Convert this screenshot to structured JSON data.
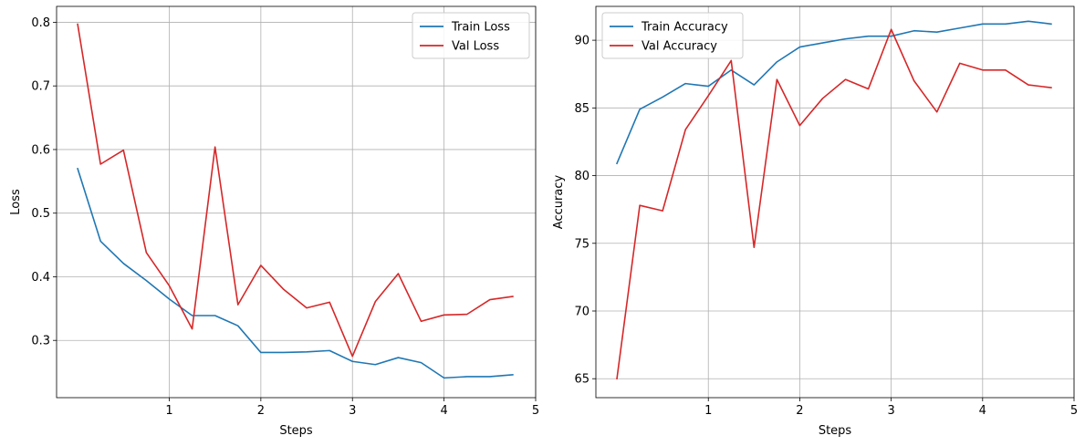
{
  "chart_data": [
    {
      "type": "line",
      "xlabel": "Steps",
      "ylabel": "Loss",
      "xlim": [
        -0.23,
        5
      ],
      "ylim": [
        0.21,
        0.825
      ],
      "xticks": [
        1,
        2,
        3,
        4,
        5
      ],
      "yticks": [
        0.3,
        0.4,
        0.5,
        0.6,
        0.7,
        0.8
      ],
      "grid": true,
      "legend": "top-right",
      "x": [
        0,
        0.25,
        0.5,
        0.75,
        1.0,
        1.25,
        1.5,
        1.75,
        2.0,
        2.25,
        2.5,
        2.75,
        3.0,
        3.25,
        3.5,
        3.75,
        4.0,
        4.25,
        4.5,
        4.75
      ],
      "series": [
        {
          "name": "Train Loss",
          "color": "#1f77b4",
          "values": [
            0.57,
            0.456,
            0.421,
            0.394,
            0.365,
            0.339,
            0.339,
            0.323,
            0.281,
            0.281,
            0.282,
            0.284,
            0.267,
            0.262,
            0.273,
            0.265,
            0.241,
            0.243,
            0.243,
            0.246
          ]
        },
        {
          "name": "Val Loss",
          "color": "#d62728",
          "values": [
            0.797,
            0.577,
            0.599,
            0.438,
            0.386,
            0.318,
            0.604,
            0.356,
            0.418,
            0.38,
            0.351,
            0.36,
            0.275,
            0.361,
            0.405,
            0.33,
            0.34,
            0.341,
            0.364,
            0.369
          ]
        }
      ]
    },
    {
      "type": "line",
      "xlabel": "Steps",
      "ylabel": "Accuracy",
      "xlim": [
        -0.23,
        5
      ],
      "ylim": [
        63.6,
        92.5
      ],
      "xticks": [
        1,
        2,
        3,
        4,
        5
      ],
      "yticks": [
        65,
        70,
        75,
        80,
        85,
        90
      ],
      "grid": true,
      "legend": "top-left",
      "x": [
        0,
        0.25,
        0.5,
        0.75,
        1.0,
        1.25,
        1.5,
        1.75,
        2.0,
        2.25,
        2.5,
        2.75,
        3.0,
        3.25,
        3.5,
        3.75,
        4.0,
        4.25,
        4.5,
        4.75
      ],
      "series": [
        {
          "name": "Train Accuracy",
          "color": "#1f77b4",
          "values": [
            80.9,
            84.9,
            85.8,
            86.8,
            86.6,
            87.8,
            86.7,
            88.4,
            89.5,
            89.8,
            90.1,
            90.3,
            90.3,
            90.7,
            90.6,
            90.9,
            91.2,
            91.2,
            91.4,
            91.2
          ]
        },
        {
          "name": "Val Accuracy",
          "color": "#d62728",
          "values": [
            65.0,
            77.8,
            77.4,
            83.4,
            85.9,
            88.5,
            74.7,
            87.1,
            83.7,
            85.7,
            87.1,
            86.4,
            90.8,
            87.0,
            84.7,
            88.3,
            87.8,
            87.8,
            86.7,
            86.5
          ]
        }
      ]
    }
  ]
}
